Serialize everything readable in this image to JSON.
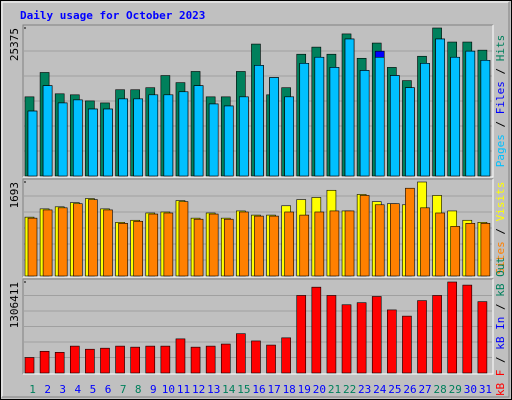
{
  "chart_data": [
    {
      "type": "bar",
      "title": "Daily usage for October 2023",
      "title_color": "#0000ff",
      "legend_separator": " / ",
      "ylim": [
        0,
        25375
      ],
      "yticks": [
        25375
      ],
      "series": [
        {
          "name": "Hits",
          "color": "#00805c",
          "values": [
            13572,
            17748,
            14094,
            13920,
            12876,
            12528,
            14790,
            14790,
            15138,
            17226,
            16008,
            17922,
            13572,
            13572,
            17922,
            22620,
            13920,
            15138,
            20880,
            22098,
            20880,
            24360,
            20184,
            22794,
            18618,
            16356,
            20532,
            25375,
            22968,
            22968,
            21576
          ]
        },
        {
          "name": "Files",
          "color": "#0000ff",
          "values": [
            11136,
            15486,
            12528,
            13050,
            11484,
            11484,
            13224,
            13224,
            13920,
            13920,
            14442,
            15486,
            12354,
            12006,
            13572,
            18966,
            16878,
            13572,
            19314,
            20358,
            18618,
            23490,
            18096,
            21402,
            17226,
            15138,
            19314,
            23490,
            20358,
            21402,
            19836
          ]
        },
        {
          "name": "Pages",
          "color": "#00c0ff",
          "values": [
            11136,
            15486,
            12528,
            13050,
            11484,
            11484,
            13224,
            13224,
            13920,
            13920,
            14442,
            15486,
            12354,
            12006,
            13572,
            18966,
            16878,
            13572,
            19314,
            20358,
            18618,
            23490,
            18096,
            20358,
            17226,
            15138,
            19314,
            23490,
            20358,
            21402,
            19836
          ]
        }
      ]
    },
    {
      "type": "bar",
      "ylim": [
        0,
        1693
      ],
      "yticks": [
        1693
      ],
      "series": [
        {
          "name": "Visits",
          "color": "#ffff00",
          "values": [
            1060,
            1209,
            1246,
            1321,
            1395,
            1209,
            967,
            1004,
            1135,
            1153,
            1358,
            1042,
            1135,
            1042,
            1172,
            1097,
            1097,
            1265,
            1376,
            1414,
            1544,
            1172,
            1469,
            1339,
            1302,
            1283,
            1693,
            1451,
            1172,
            1004,
            967
          ]
        },
        {
          "name": "Sites",
          "color": "#ff8000",
          "values": [
            1042,
            1190,
            1228,
            1302,
            1376,
            1190,
            949,
            986,
            1116,
            1135,
            1339,
            1023,
            1116,
            1023,
            1153,
            1079,
            1079,
            1153,
            1097,
            1153,
            1172,
            1172,
            1451,
            1283,
            1302,
            1581,
            1228,
            1135,
            893,
            949,
            949
          ]
        }
      ]
    },
    {
      "type": "bar",
      "ylim": [
        0,
        1306411
      ],
      "yticks": [
        1306411
      ],
      "categories": [
        "1",
        "2",
        "3",
        "4",
        "5",
        "6",
        "7",
        "8",
        "9",
        "10",
        "11",
        "12",
        "13",
        "14",
        "15",
        "16",
        "17",
        "18",
        "19",
        "20",
        "21",
        "22",
        "23",
        "24",
        "25",
        "26",
        "27",
        "28",
        "29",
        "30",
        "31"
      ],
      "category_colors": [
        "#00805c",
        "#0000ff",
        "#0000ff",
        "#0000ff",
        "#0000ff",
        "#0000ff",
        "#00805c",
        "#00805c",
        "#0000ff",
        "#0000ff",
        "#0000ff",
        "#0000ff",
        "#0000ff",
        "#00805c",
        "#00805c",
        "#0000ff",
        "#0000ff",
        "#0000ff",
        "#0000ff",
        "#0000ff",
        "#00805c",
        "#00805c",
        "#0000ff",
        "#0000ff",
        "#0000ff",
        "#0000ff",
        "#0000ff",
        "#00805c",
        "#00805c",
        "#0000ff",
        "#0000ff"
      ],
      "series": [
        {
          "name": "kB Out",
          "color": "#00805c",
          "values": [
            0,
            0,
            0,
            0,
            0,
            0,
            0,
            0,
            0,
            0,
            0,
            0,
            0,
            0,
            0,
            0,
            0,
            0,
            0,
            0,
            0,
            0,
            0,
            0,
            0,
            0,
            0,
            0,
            0,
            0,
            0
          ]
        },
        {
          "name": "kB In",
          "color": "#0000ff",
          "values": [
            0,
            0,
            0,
            0,
            0,
            0,
            0,
            0,
            0,
            0,
            0,
            0,
            0,
            0,
            0,
            0,
            0,
            0,
            0,
            0,
            0,
            0,
            0,
            0,
            0,
            0,
            0,
            0,
            0,
            0,
            0
          ]
        },
        {
          "name": "kB F",
          "color": "#ff0000",
          "values": [
            222690,
            311766,
            296920,
            385996,
            341458,
            356304,
            385996,
            371150,
            385996,
            385996,
            489918,
            371150,
            385996,
            415688,
            564148,
            460226,
            400842,
            504764,
            1113450,
            1232218,
            1113450,
            979836,
            1009528,
            1098604,
            905606,
            816530,
            1039220,
            1113450,
            1306411,
            1261910,
            1024374
          ]
        }
      ]
    }
  ]
}
